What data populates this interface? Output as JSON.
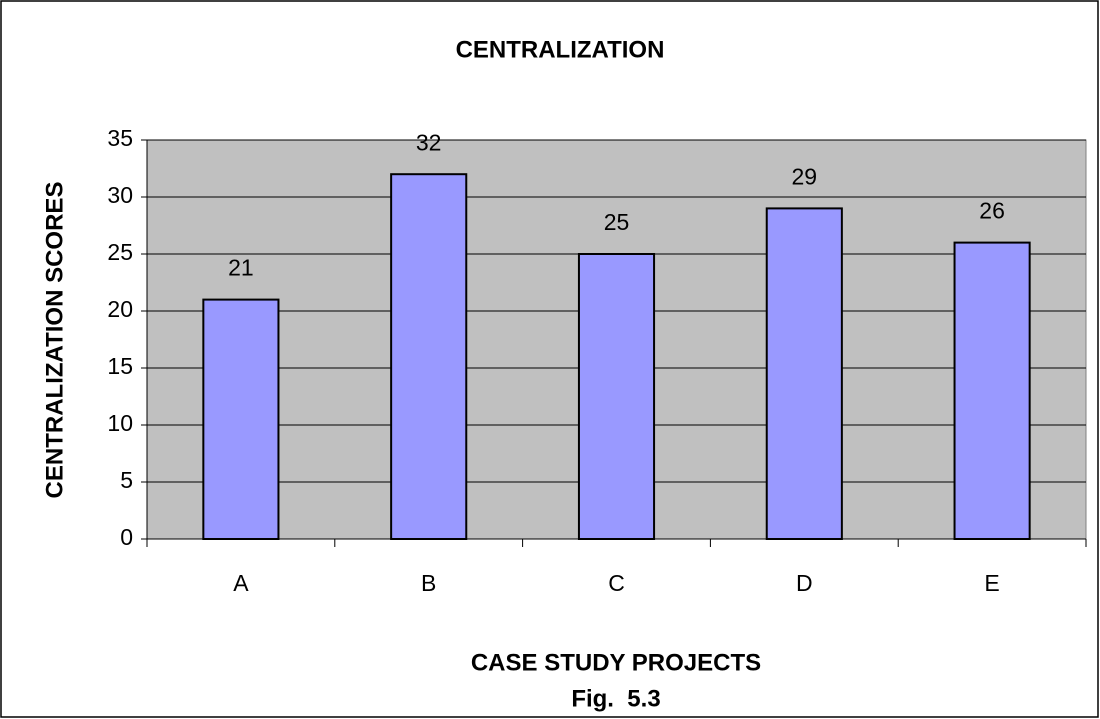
{
  "chart_data": {
    "type": "bar",
    "title": "CENTRALIZATION",
    "x_label": "CASE STUDY PROJECTS",
    "y_label": "CENTRALIZATION SCORES",
    "caption": "Fig.  5.3",
    "categories": [
      "A",
      "B",
      "C",
      "D",
      "E"
    ],
    "values": [
      21,
      32,
      25,
      29,
      26
    ],
    "color": "#9999ff",
    "ylim": [
      0,
      35
    ],
    "yticks": [
      0,
      5,
      10,
      15,
      20,
      25,
      30,
      35
    ],
    "grid": true,
    "data_labels": true
  }
}
